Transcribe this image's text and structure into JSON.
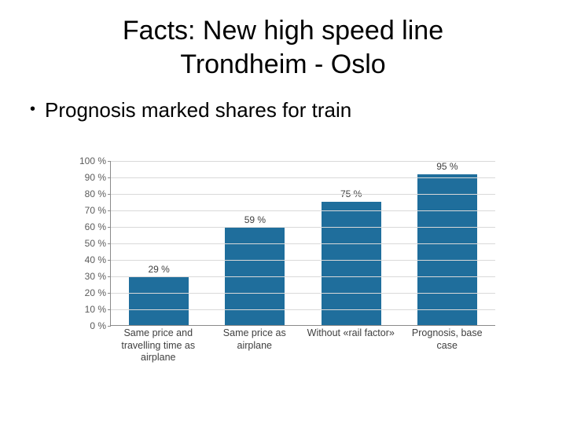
{
  "title_line1": "Facts: New high speed line",
  "title_line2": "Trondheim - Oslo",
  "bullet": "Prognosis marked shares for train",
  "chart": {
    "type": "bar",
    "ylim": [
      0,
      100
    ],
    "ytick_step": 10,
    "ytick_suffix": " %",
    "y_axis_color": "#8a8a8a",
    "grid_color": "#d9d9d9",
    "bar_color": "#1f6e9c",
    "background_color": "#ffffff",
    "label_fontsize": 12.5,
    "value_fontsize": 12,
    "bar_width_pct": 62,
    "categories": [
      "Same price and travelling time as airplane",
      "Same price as airplane",
      "Without «rail factor»",
      "Prognosis, base case"
    ],
    "values": [
      29,
      59,
      75,
      95
    ],
    "value_labels": [
      "29 %",
      "59 %",
      "75 %",
      "95 %"
    ]
  }
}
